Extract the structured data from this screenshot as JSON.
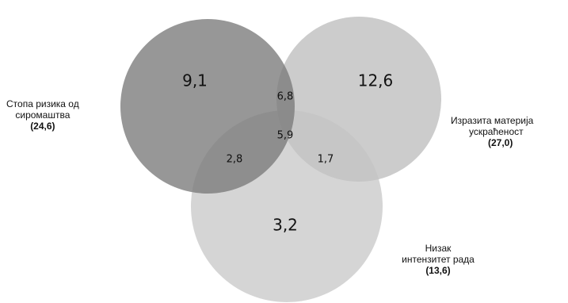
{
  "sets": [
    {
      "id": "poverty",
      "label_lines": [
        "Стопа ризика од",
        "сиромаштва"
      ],
      "total": "(24,6)",
      "color": "#7a7a7a"
    },
    {
      "id": "deprivation",
      "label_lines": [
        "Изразита материја",
        "ускраћеност"
      ],
      "total": "(27,0)",
      "color": "#b9b9b9"
    },
    {
      "id": "work",
      "label_lines": [
        "Низак",
        "интензитет рада"
      ],
      "total": "(13,6)",
      "color": "#c3c3c3"
    }
  ],
  "regions": {
    "poverty_only": "9,1",
    "deprivation_only": "12,6",
    "work_only": "3,2",
    "poverty_deprivation": "6,8",
    "poverty_work": "2,8",
    "deprivation_work": "1,7",
    "all_three": "5,9"
  }
}
